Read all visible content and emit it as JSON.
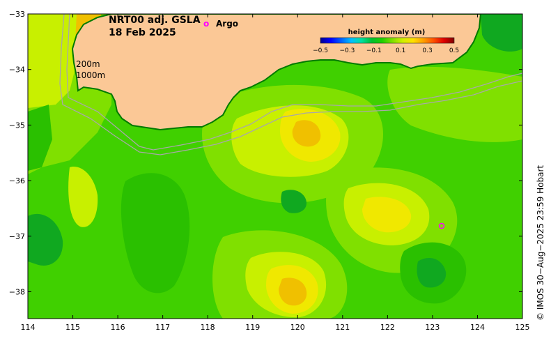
{
  "title": {
    "line1": "NRT00 adj. GSLA",
    "line2": "18 Feb 2025"
  },
  "legend": {
    "argo_symbol": "o",
    "argo_label": "Argo",
    "argo_color": "#ff00ff"
  },
  "depth_contours": {
    "label_200": "200m",
    "label_1000": "1000m"
  },
  "colorbar": {
    "title": "height anomaly (m)",
    "ticks": [
      "−0.5",
      "−0.3",
      "−0.1",
      "0.1",
      "0.3",
      "0.5"
    ],
    "colors": [
      "#000090",
      "#0000ff",
      "#0060ff",
      "#00c0ff",
      "#00e0a0",
      "#00c030",
      "#20d000",
      "#80e000",
      "#d0f000",
      "#ffe000",
      "#ffa000",
      "#ff5000",
      "#e00000",
      "#800000"
    ]
  },
  "credit": "© IMOS 30−Aug−2025 23:59 Hobart",
  "axes": {
    "x_ticks": [
      "114",
      "115",
      "116",
      "117",
      "118",
      "119",
      "120",
      "121",
      "122",
      "123",
      "124",
      "125"
    ],
    "y_ticks": [
      "−33",
      "−34",
      "−35",
      "−36",
      "−37",
      "−38"
    ]
  },
  "colors": {
    "land": "#fbc896",
    "coast": "#007a00",
    "field_base": "#40d000",
    "green_mid": "#2ac000",
    "green_dark": "#10a820",
    "yellow_green": "#c8f000",
    "light_green": "#80e000",
    "yellow": "#f0e800",
    "gold": "#f0c000",
    "contour_line": "#a8a8a8"
  }
}
